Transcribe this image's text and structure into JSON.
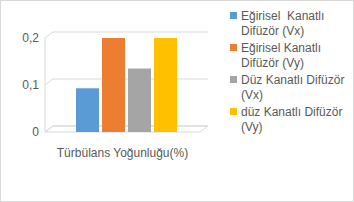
{
  "chart_data": {
    "type": "bar",
    "categories": [
      "Türbülans Yoğunluğu(%)"
    ],
    "series": [
      {
        "name": "Eğirisel  Kanatlı Difüzör (Vx)",
        "color": "#5b9bd5",
        "values": [
          0.093
        ]
      },
      {
        "name": "Eğirisel Kanatlı Difüzör (Vy)",
        "color": "#ed7d31",
        "values": [
          0.2
        ]
      },
      {
        "name": "Düz Kanatlı Difüzör (Vx)",
        "color": "#a5a5a5",
        "values": [
          0.135
        ]
      },
      {
        "name": "düz Kanatlı Difüzör (Vy)",
        "color": "#ffc000",
        "values": [
          0.2
        ]
      }
    ],
    "ylim": [
      0,
      0.2
    ],
    "yticks": [
      0,
      {
        "value": 0.1,
        "label": "0,1"
      },
      {
        "value": 0.2,
        "label": "0,2"
      }
    ],
    "grid": true,
    "legend": "right"
  }
}
